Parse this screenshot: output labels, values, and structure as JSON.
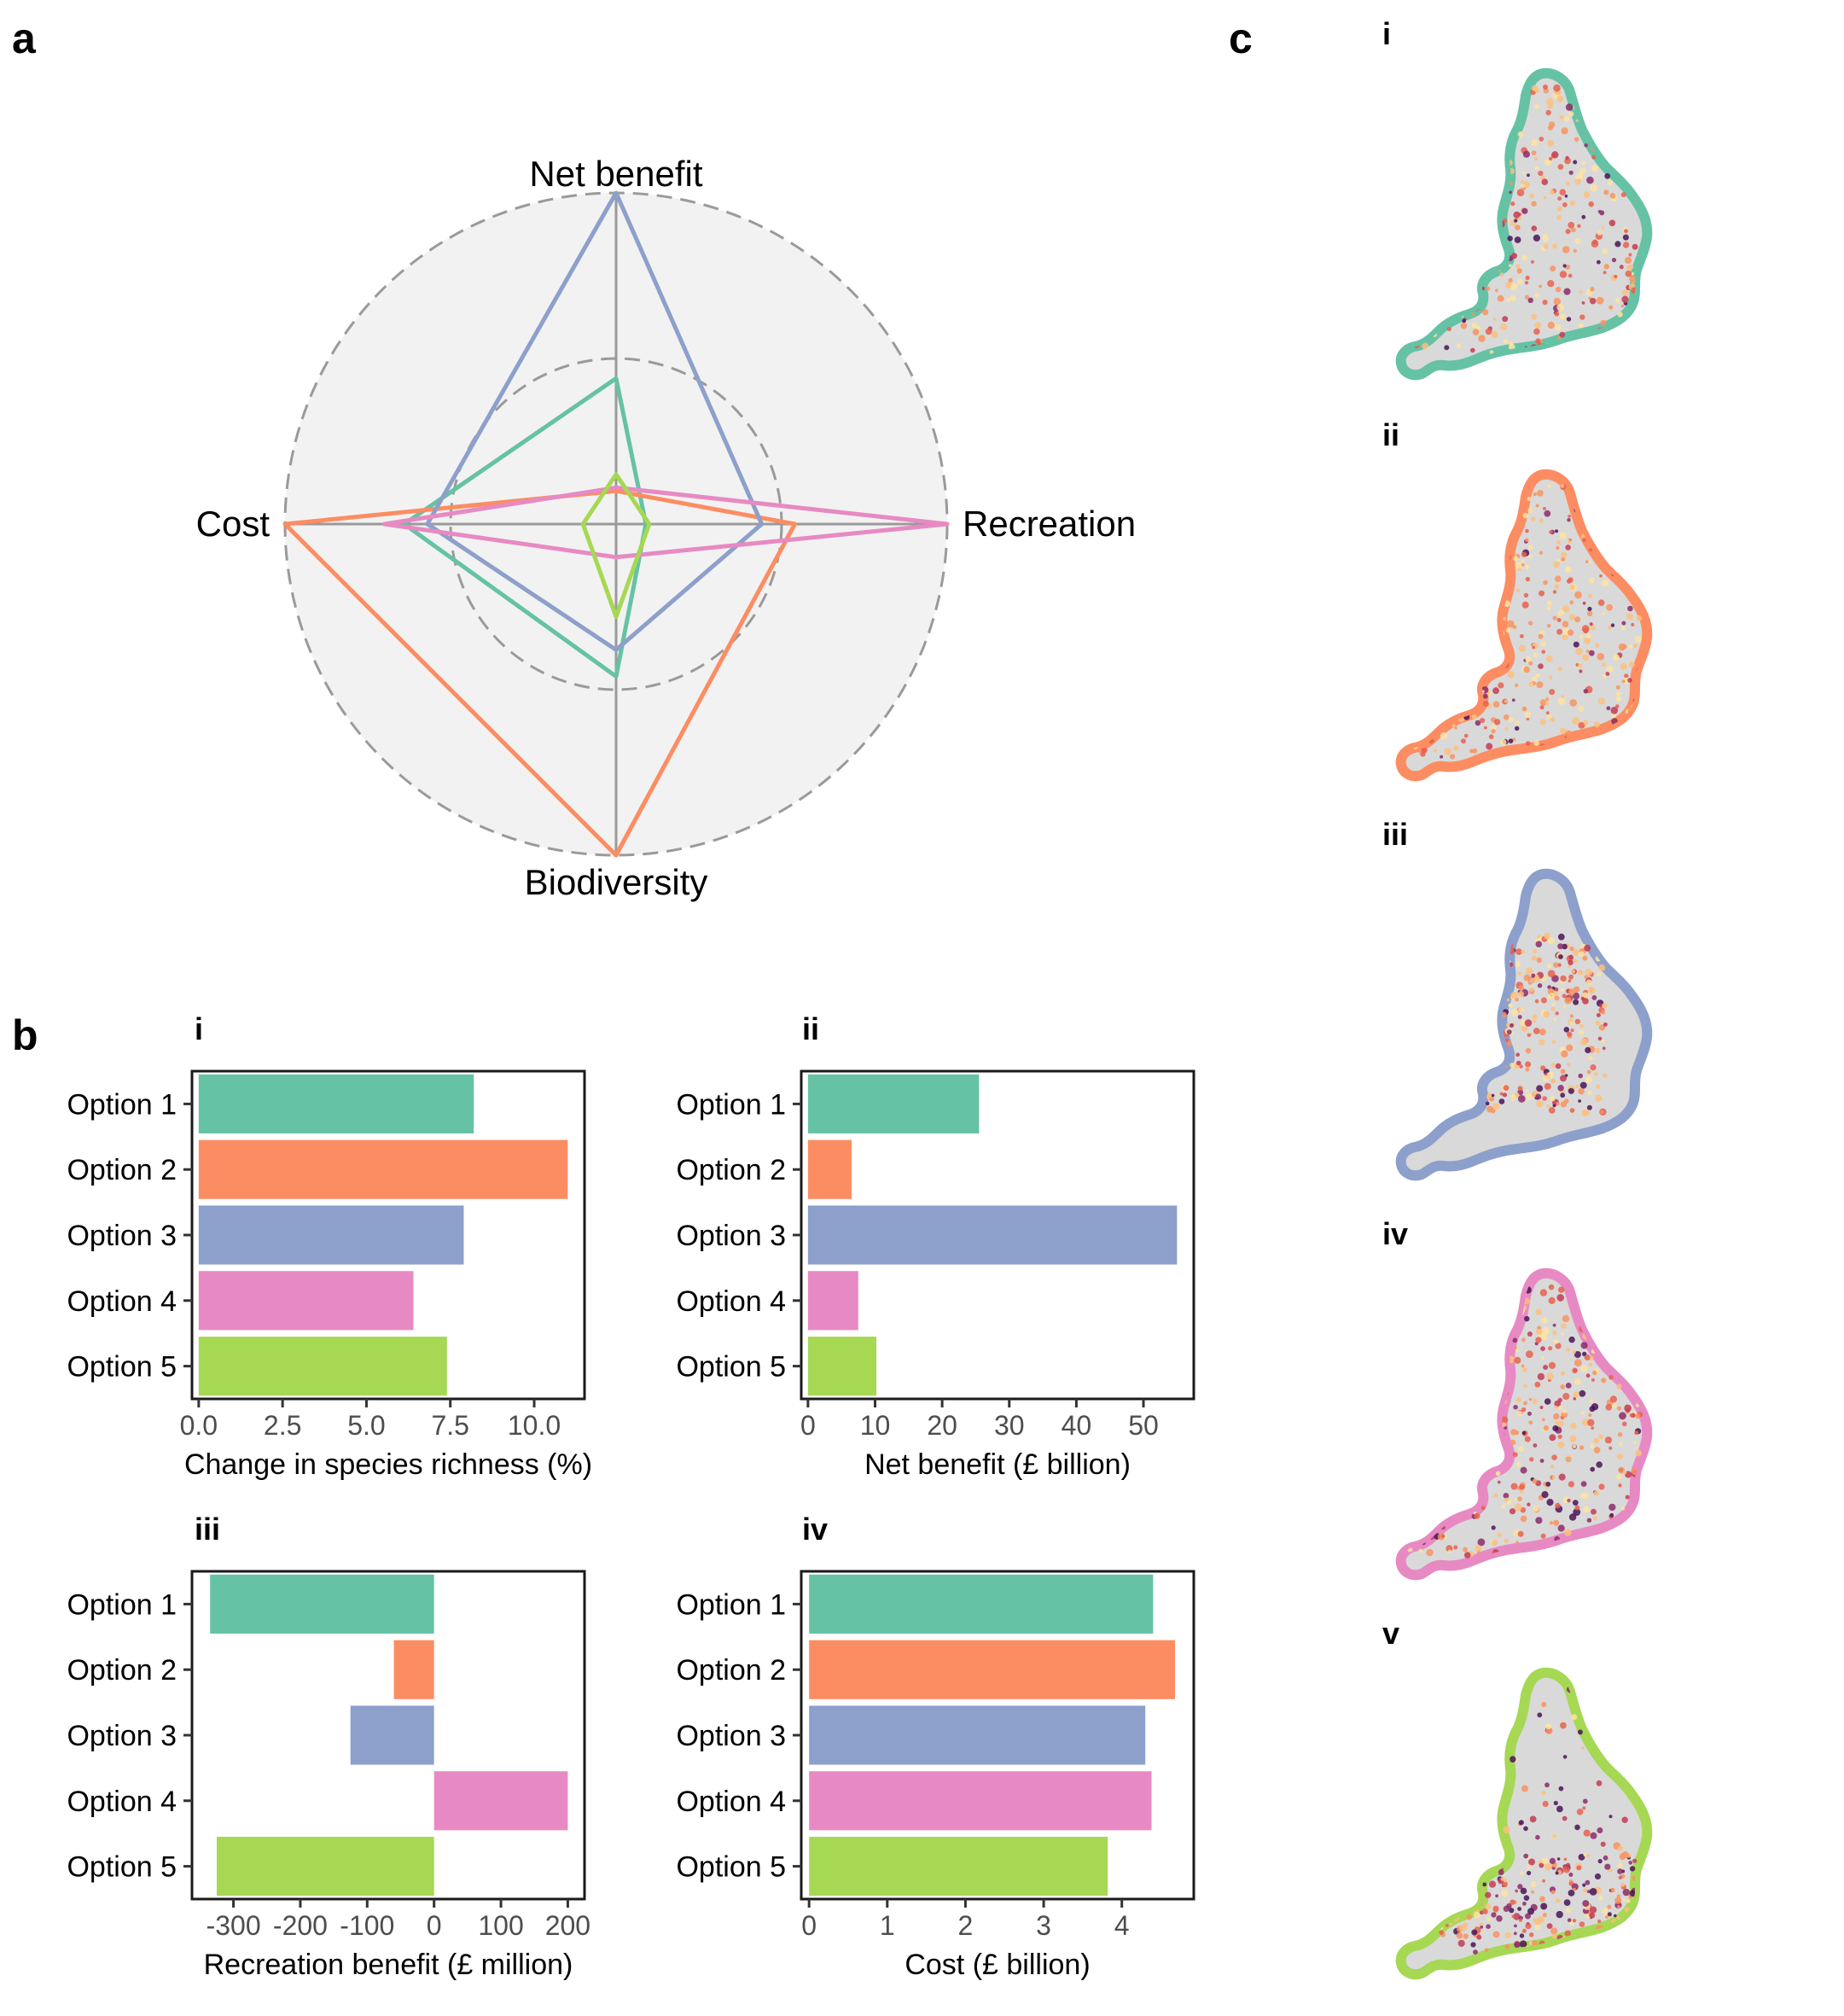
{
  "panel_labels": {
    "a": "a",
    "b": "b",
    "c": "c"
  },
  "sub_labels": {
    "b": [
      "i",
      "ii",
      "iii",
      "iv"
    ],
    "c": [
      "i",
      "ii",
      "iii",
      "iv",
      "v"
    ]
  },
  "colors": {
    "option1": "#66c2a5",
    "option2": "#fc8d62",
    "option3": "#8da0cb",
    "option4": "#e78ac3",
    "option5": "#a6d854",
    "radar_bg": "#f2f2f2",
    "map_fill": "#d9d9d9"
  },
  "chart_data": [
    {
      "type": "radar",
      "axes": [
        "Net benefit",
        "Recreation",
        "Biodiversity",
        "Cost"
      ],
      "rings": [
        0.5,
        1.0
      ],
      "series": [
        {
          "color": "#66c2a5",
          "values": [
            0.44,
            0.09,
            0.46,
            0.64
          ]
        },
        {
          "color": "#fc8d62",
          "values": [
            0.1,
            0.54,
            1.0,
            1.0
          ]
        },
        {
          "color": "#8da0cb",
          "values": [
            1.0,
            0.44,
            0.38,
            0.57
          ]
        },
        {
          "color": "#e78ac3",
          "values": [
            0.11,
            1.0,
            0.1,
            0.7
          ]
        },
        {
          "color": "#a6d854",
          "values": [
            0.15,
            0.1,
            0.28,
            0.1
          ]
        }
      ]
    },
    {
      "type": "bar",
      "orientation": "horizontal",
      "categories": [
        "Option 1",
        "Option 2",
        "Option 3",
        "Option 4",
        "Option 5"
      ],
      "values": [
        8.2,
        11.0,
        7.9,
        6.4,
        7.4
      ],
      "xlabel": "Change in species richness (%)",
      "xlim": [
        -0.2,
        11.5
      ],
      "ticks": [
        0,
        2.5,
        5,
        7.5,
        10
      ],
      "tick_labels": [
        "0.0",
        "2.5",
        "5.0",
        "7.5",
        "10.0"
      ]
    },
    {
      "type": "bar",
      "orientation": "horizontal",
      "categories": [
        "Option 1",
        "Option 2",
        "Option 3",
        "Option 4",
        "Option 5"
      ],
      "values": [
        25.5,
        6.5,
        55.0,
        7.5,
        10.2
      ],
      "xlabel": "Net benefit (£ billion)",
      "xlim": [
        -1,
        57.5
      ],
      "ticks": [
        0,
        10,
        20,
        30,
        40,
        50
      ],
      "tick_labels": [
        "0",
        "10",
        "20",
        "30",
        "40",
        "50"
      ]
    },
    {
      "type": "bar",
      "orientation": "horizontal",
      "categories": [
        "Option 1",
        "Option 2",
        "Option 3",
        "Option 4",
        "Option 5"
      ],
      "values": [
        -335,
        -60,
        -125,
        200,
        -325
      ],
      "xlabel": "Recreation benefit (£ million)",
      "xlim": [
        -362,
        225
      ],
      "ticks": [
        -300,
        -200,
        -100,
        0,
        100,
        200
      ],
      "tick_labels": [
        "-300",
        "-200",
        "-100",
        "0",
        "100",
        "200"
      ]
    },
    {
      "type": "bar",
      "orientation": "horizontal",
      "categories": [
        "Option 1",
        "Option 2",
        "Option 3",
        "Option 4",
        "Option 5"
      ],
      "values": [
        4.4,
        4.68,
        4.3,
        4.38,
        3.82
      ],
      "xlabel": "Cost (£ billion)",
      "xlim": [
        -0.1,
        4.92
      ],
      "ticks": [
        0,
        1,
        2,
        3,
        4
      ],
      "tick_labels": [
        "0",
        "1",
        "2",
        "3",
        "4"
      ]
    }
  ],
  "maps": [
    {
      "color": "#66c2a5",
      "pattern": "dense-uniform"
    },
    {
      "color": "#fc8d62",
      "pattern": "widespread-light"
    },
    {
      "color": "#8da0cb",
      "pattern": "central-sparse"
    },
    {
      "color": "#e78ac3",
      "pattern": "dense-uniform"
    },
    {
      "color": "#a6d854",
      "pattern": "south-concentrated"
    }
  ]
}
